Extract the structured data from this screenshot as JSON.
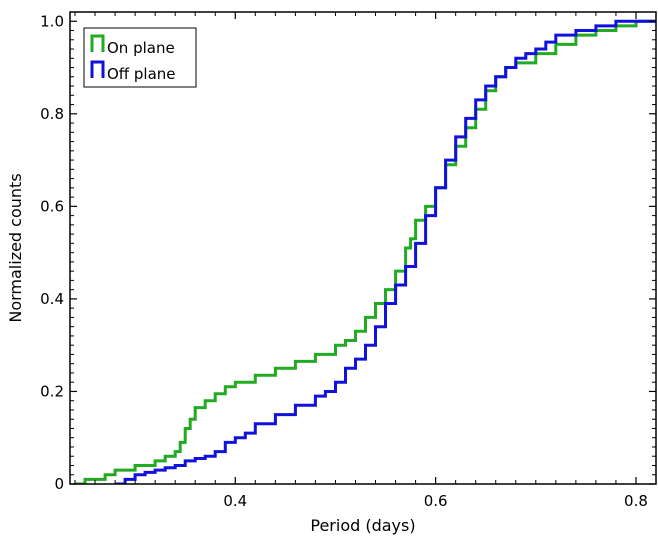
{
  "chart_data": {
    "type": "line",
    "drawstyle": "steps",
    "title": "",
    "xlabel": "Period (days)",
    "ylabel": "Normalized counts",
    "xlim": [
      0.235,
      0.82
    ],
    "ylim": [
      0,
      1.02
    ],
    "xticks": [
      0.4,
      0.6,
      0.8
    ],
    "xtick_labels": [
      "0.4",
      "0.6",
      "0.8"
    ],
    "yticks": [
      0,
      0.2,
      0.4,
      0.6,
      0.8,
      1.0
    ],
    "ytick_labels": [
      "0",
      "0.2",
      "0.4",
      "0.6",
      "0.8",
      "1.0"
    ],
    "grid": false,
    "legend": {
      "placement": "top-left",
      "entries": [
        "On plane",
        "Off plane"
      ]
    },
    "series": [
      {
        "name": "On plane",
        "color": "#22aa22",
        "x": [
          0.24,
          0.25,
          0.27,
          0.28,
          0.3,
          0.32,
          0.33,
          0.34,
          0.345,
          0.35,
          0.355,
          0.36,
          0.37,
          0.38,
          0.39,
          0.4,
          0.42,
          0.44,
          0.46,
          0.48,
          0.5,
          0.51,
          0.52,
          0.53,
          0.54,
          0.55,
          0.56,
          0.57,
          0.575,
          0.58,
          0.59,
          0.6,
          0.61,
          0.62,
          0.63,
          0.64,
          0.65,
          0.66,
          0.67,
          0.68,
          0.7,
          0.72,
          0.74,
          0.76,
          0.78,
          0.8,
          0.82
        ],
        "y": [
          0.0,
          0.01,
          0.02,
          0.03,
          0.04,
          0.05,
          0.06,
          0.07,
          0.09,
          0.12,
          0.14,
          0.165,
          0.18,
          0.195,
          0.21,
          0.22,
          0.235,
          0.25,
          0.265,
          0.28,
          0.3,
          0.31,
          0.33,
          0.36,
          0.39,
          0.42,
          0.46,
          0.51,
          0.53,
          0.57,
          0.6,
          0.64,
          0.69,
          0.73,
          0.77,
          0.81,
          0.85,
          0.88,
          0.9,
          0.91,
          0.93,
          0.95,
          0.97,
          0.98,
          0.99,
          1.0,
          1.0
        ]
      },
      {
        "name": "Off plane",
        "color": "#1111dd",
        "x": [
          0.28,
          0.29,
          0.3,
          0.31,
          0.32,
          0.33,
          0.34,
          0.35,
          0.36,
          0.37,
          0.38,
          0.39,
          0.4,
          0.41,
          0.42,
          0.44,
          0.46,
          0.48,
          0.49,
          0.5,
          0.51,
          0.52,
          0.53,
          0.54,
          0.55,
          0.56,
          0.57,
          0.58,
          0.59,
          0.6,
          0.61,
          0.62,
          0.63,
          0.64,
          0.65,
          0.66,
          0.67,
          0.68,
          0.69,
          0.7,
          0.71,
          0.72,
          0.74,
          0.76,
          0.78,
          0.8,
          0.82
        ],
        "y": [
          0.0,
          0.01,
          0.02,
          0.025,
          0.03,
          0.035,
          0.04,
          0.05,
          0.055,
          0.06,
          0.07,
          0.09,
          0.1,
          0.11,
          0.13,
          0.15,
          0.17,
          0.19,
          0.2,
          0.22,
          0.25,
          0.27,
          0.3,
          0.34,
          0.39,
          0.43,
          0.47,
          0.52,
          0.58,
          0.64,
          0.7,
          0.75,
          0.79,
          0.83,
          0.86,
          0.88,
          0.9,
          0.92,
          0.93,
          0.94,
          0.955,
          0.97,
          0.98,
          0.99,
          1.0,
          1.0,
          1.0
        ]
      }
    ]
  }
}
